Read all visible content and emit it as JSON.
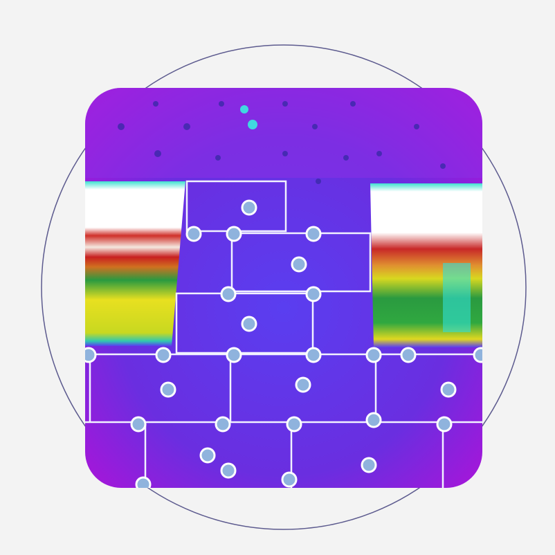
{
  "colors": {
    "background": "#f3f3f3",
    "ring": "#5c5a8e",
    "thermal_cold": "#6a2ee0",
    "thermal_edge": "#b012d8",
    "grid_line": "#f2f2ff",
    "marker_fill": "#8fb3dd",
    "marker_stroke": "#ffffff"
  },
  "icons": [
    "thermal-image",
    "marker-dot"
  ]
}
